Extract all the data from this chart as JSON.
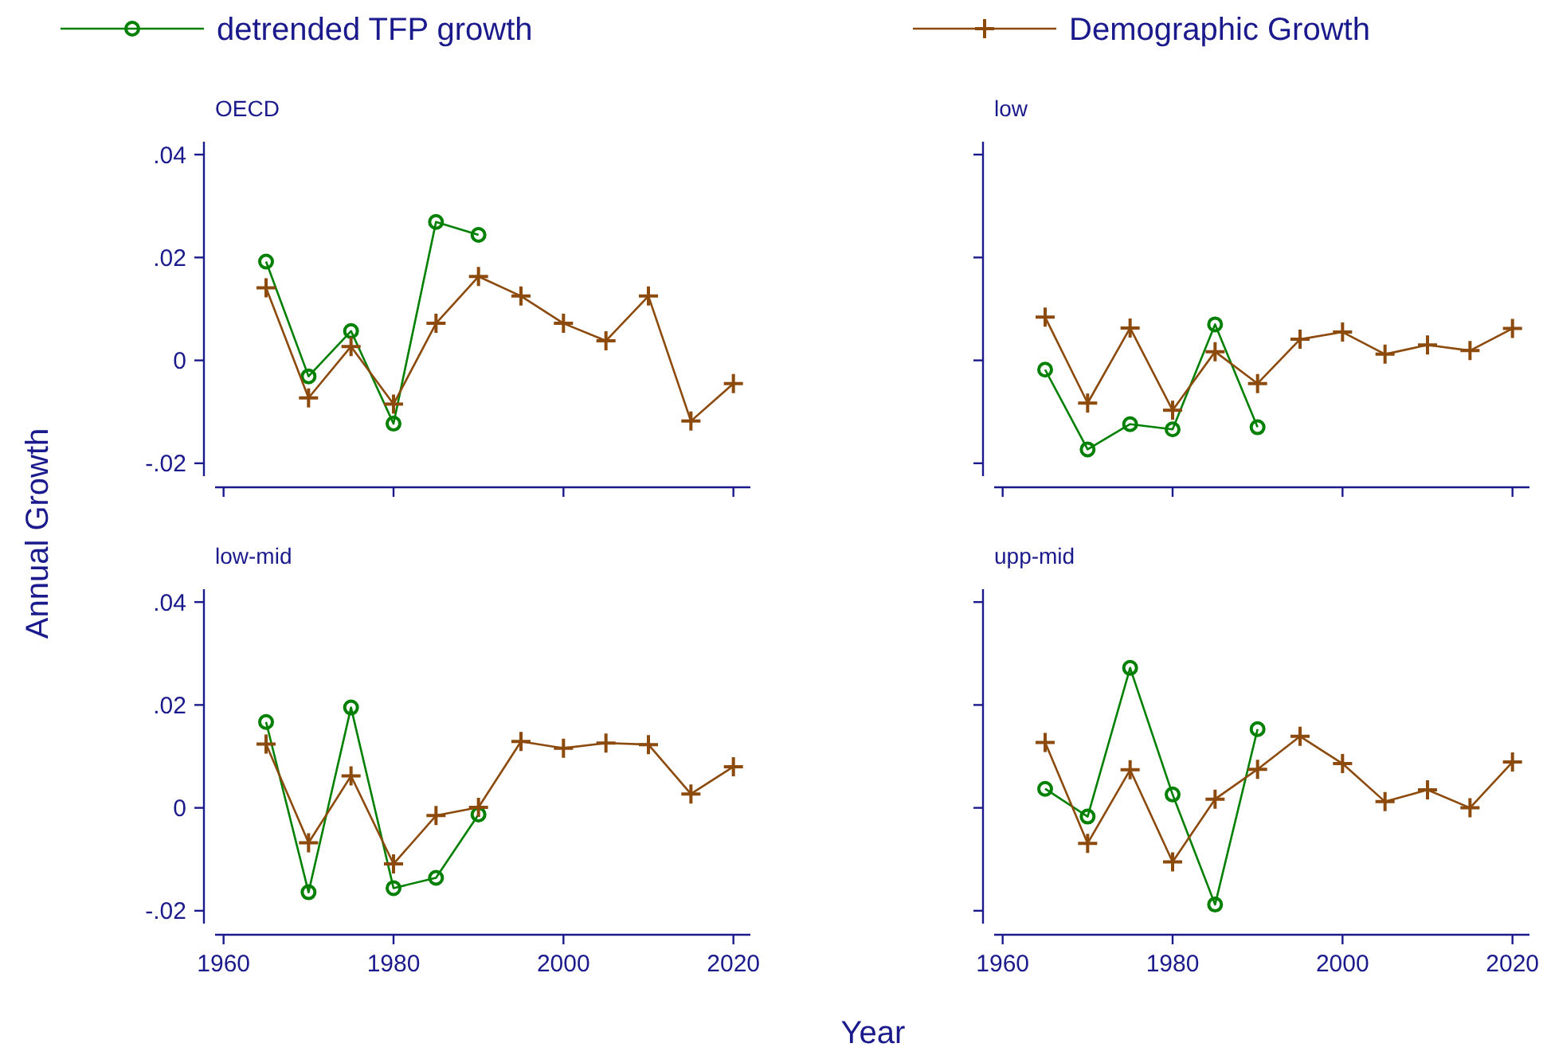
{
  "chart_data": [
    {
      "type": "line",
      "title": "OECD",
      "ylabel": "Annual Growth",
      "xlabel": "Year",
      "legend": "top",
      "tick_labels": "y",
      "line_style": "solid",
      "x": [
        1965,
        1970,
        1975,
        1980,
        1985,
        1990,
        1995,
        2000,
        2005,
        2010,
        2015,
        2020
      ],
      "xlim": [
        1959,
        2022
      ],
      "xticks": [
        {
          "value": 1960,
          "label": null
        },
        {
          "value": 1980,
          "label": null
        },
        {
          "value": 2000,
          "label": null
        },
        {
          "value": 2020,
          "label": null
        }
      ],
      "ylim": [
        -0.0225,
        0.0425
      ],
      "yticks": [
        {
          "value": -0.02,
          "label": "-.02"
        },
        {
          "value": 0,
          "label": "0"
        },
        {
          "value": 0.02,
          "label": ".02"
        },
        {
          "value": 0.04,
          "label": ".04"
        }
      ],
      "series": [
        {
          "name": "detrended TFP growth",
          "color": "#008000",
          "marker": "circle",
          "values": [
            0.0192,
            -0.0031,
            0.0057,
            -0.0123,
            0.0269,
            0.0244,
            null,
            null,
            null,
            null,
            null,
            null
          ]
        },
        {
          "name": "Demographic Growth",
          "color": "#8c4a0c",
          "marker": "cross",
          "values": [
            0.0141,
            -0.0073,
            0.0027,
            -0.0085,
            0.0072,
            0.0163,
            0.0125,
            0.0072,
            0.0038,
            0.0125,
            -0.0118,
            -0.0045
          ]
        }
      ]
    },
    {
      "type": "line",
      "title": "low",
      "tick_labels": false,
      "line_style": "solid",
      "x": [
        1965,
        1970,
        1975,
        1980,
        1985,
        1990,
        1995,
        2000,
        2005,
        2010,
        2015,
        2020
      ],
      "xlim": [
        1959,
        2022
      ],
      "xticks": [
        {
          "value": 1960,
          "label": null
        },
        {
          "value": 1980,
          "label": null
        },
        {
          "value": 2000,
          "label": null
        },
        {
          "value": 2020,
          "label": null
        }
      ],
      "ylim": [
        -0.0225,
        0.0425
      ],
      "yticks": [
        {
          "value": -0.02,
          "label": null
        },
        {
          "value": 0,
          "label": null
        },
        {
          "value": 0.02,
          "label": null
        },
        {
          "value": 0.04,
          "label": null
        }
      ],
      "series": [
        {
          "color": "#008000",
          "marker": "circle",
          "values": [
            -0.0018,
            -0.0173,
            -0.0124,
            -0.0134,
            0.007,
            -0.013,
            null,
            null,
            null,
            null,
            null,
            null
          ]
        },
        {
          "color": "#8c4a0c",
          "marker": "cross",
          "values": [
            0.0084,
            -0.0083,
            0.0063,
            -0.0097,
            0.0017,
            -0.0045,
            0.0041,
            0.0055,
            0.0012,
            0.003,
            0.0019,
            0.0062
          ]
        }
      ]
    },
    {
      "type": "line",
      "title": "low-mid",
      "line_style": "solid",
      "x": [
        1965,
        1970,
        1975,
        1980,
        1985,
        1990,
        1995,
        2000,
        2005,
        2010,
        2015,
        2020
      ],
      "xlim": [
        1959,
        2022
      ],
      "xticks": [
        1960,
        1980,
        2000,
        2020
      ],
      "ylim": [
        -0.0225,
        0.0425
      ],
      "yticks": [
        {
          "value": -0.02,
          "label": "-.02"
        },
        {
          "value": 0,
          "label": "0"
        },
        {
          "value": 0.02,
          "label": ".02"
        },
        {
          "value": 0.04,
          "label": ".04"
        }
      ],
      "series": [
        {
          "color": "#008000",
          "marker": "circle",
          "values": [
            0.0167,
            -0.0164,
            0.0195,
            -0.0156,
            -0.0136,
            -0.0013,
            null,
            null,
            null,
            null,
            null,
            null
          ]
        },
        {
          "color": "#8c4a0c",
          "marker": "cross",
          "values": [
            0.0124,
            -0.0068,
            0.0062,
            -0.0109,
            -0.0015,
            0.0001,
            0.0129,
            0.0116,
            0.0126,
            0.0123,
            0.0027,
            0.008
          ]
        }
      ]
    },
    {
      "type": "line",
      "title": "upp-mid",
      "tick_labels": "x",
      "line_style": "solid",
      "x": [
        1965,
        1970,
        1975,
        1980,
        1985,
        1990,
        1995,
        2000,
        2005,
        2010,
        2015,
        2020
      ],
      "xlim": [
        1959,
        2022
      ],
      "xticks": [
        1960,
        1980,
        2000,
        2020
      ],
      "ylim": [
        -0.0225,
        0.0425
      ],
      "yticks": [
        {
          "value": -0.02,
          "label": null
        },
        {
          "value": 0,
          "label": null
        },
        {
          "value": 0.02,
          "label": null
        },
        {
          "value": 0.04,
          "label": null
        }
      ],
      "series": [
        {
          "color": "#008000",
          "marker": "circle",
          "values": [
            0.0037,
            -0.0017,
            0.0272,
            0.0026,
            -0.0188,
            0.0153,
            null,
            null,
            null,
            null,
            null,
            null
          ]
        },
        {
          "color": "#8c4a0c",
          "marker": "cross",
          "values": [
            0.0127,
            -0.0069,
            0.0074,
            -0.0105,
            0.0017,
            0.0075,
            0.0139,
            0.0086,
            0.0012,
            0.0035,
            0.0,
            0.0089
          ]
        }
      ]
    }
  ]
}
